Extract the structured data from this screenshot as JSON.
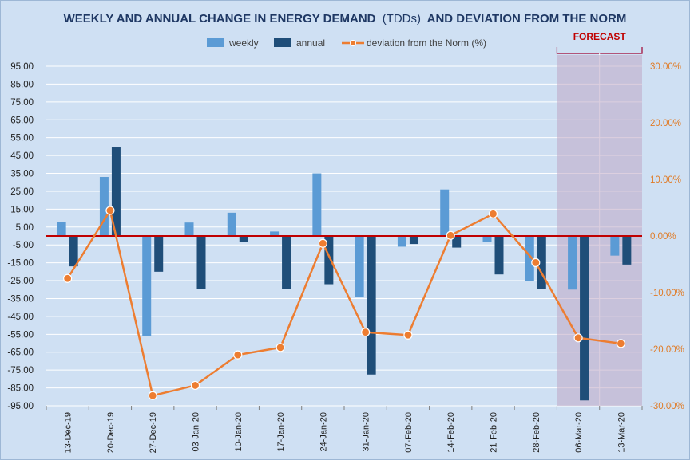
{
  "chart_data": {
    "type": "bar",
    "title_main": "WEEKLY  AND ANNUAL CHANGE IN ENERGY DEMAND",
    "title_unit": "(TDDs)",
    "title_tail": "AND DEVIATION FROM THE NORM",
    "categories": [
      "13-Dec-19",
      "20-Dec-19",
      "27-Dec-19",
      "03-Jan-20",
      "10-Jan-20",
      "17-Jan-20",
      "24-Jan-20",
      "31-Jan-20",
      "07-Feb-20",
      "14-Feb-20",
      "21-Feb-20",
      "28-Feb-20",
      "06-Mar-20",
      "13-Mar-20"
    ],
    "series": [
      {
        "name": "weekly",
        "type": "bar",
        "axis": "left",
        "color": "#5b9bd5",
        "values": [
          8,
          33,
          -56,
          7.5,
          13,
          2.5,
          35,
          -34,
          -6,
          26,
          -3.5,
          -25,
          -30,
          -11
        ]
      },
      {
        "name": "annual",
        "type": "bar",
        "axis": "left",
        "color": "#1f4e79",
        "values": [
          -17,
          49.5,
          -20,
          -29.5,
          -3.5,
          -29.5,
          -27,
          -77.5,
          -4.5,
          -6.5,
          -21.5,
          -29.5,
          -92,
          -16
        ]
      },
      {
        "name": "deviation from the Norm (%)",
        "type": "line",
        "axis": "right",
        "color": "#ed7d31",
        "values": [
          -7.5,
          4.5,
          -28.2,
          -26.4,
          -21.0,
          -19.7,
          -1.3,
          -17.0,
          -17.5,
          0.1,
          3.9,
          -4.7,
          -18.0,
          -19.0
        ]
      }
    ],
    "y_left": {
      "min": -95,
      "max": 95,
      "step": 10,
      "ticks": [
        "95.00",
        "85.00",
        "75.00",
        "65.00",
        "55.00",
        "45.00",
        "35.00",
        "25.00",
        "15.00",
        "5.00",
        "-5.00",
        "-15.00",
        "-25.00",
        "-35.00",
        "-45.00",
        "-55.00",
        "-65.00",
        "-75.00",
        "-85.00",
        "-95.00"
      ]
    },
    "y_right": {
      "min": -30,
      "max": 30,
      "step": 10,
      "ticks": [
        "30.00%",
        "20.00%",
        "10.00%",
        "0.00%",
        "-10.00%",
        "-20.00%",
        "-30.00%"
      ]
    },
    "forecast": {
      "label": "FORECAST",
      "from_category": "06-Mar-20",
      "to_category": "13-Mar-20"
    },
    "zero_line_color": "#c00000",
    "background": "#cfe0f3",
    "gridlines": true,
    "legend_position": "top-center"
  }
}
